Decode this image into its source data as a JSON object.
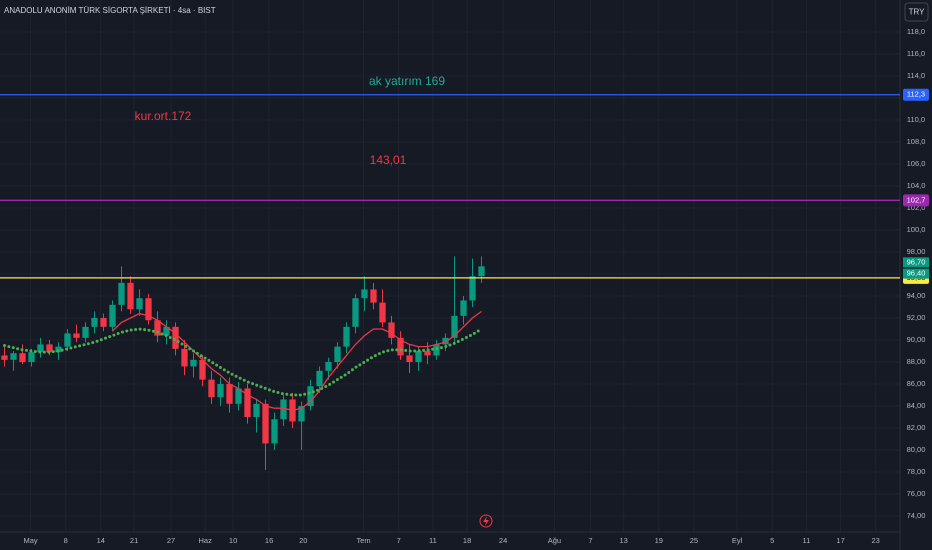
{
  "chart_data": {
    "type": "candlestick",
    "title": "ANADOLU ANONİM TÜRK SİGORTA ŞİRKETİ · 4sa · BIST",
    "currency": "TRY",
    "up_color": "#089981",
    "down_color": "#f23645",
    "xlim": [
      -0.5,
      99.5
    ],
    "xticks": [
      {
        "value": 2.9,
        "label": "May"
      },
      {
        "value": 6.8,
        "label": "8"
      },
      {
        "value": 10.7,
        "label": "14"
      },
      {
        "value": 14.4,
        "label": "21"
      },
      {
        "value": 18.5,
        "label": "27"
      },
      {
        "value": 22.3,
        "label": "Haz"
      },
      {
        "value": 25.4,
        "label": "10"
      },
      {
        "value": 29.4,
        "label": "16"
      },
      {
        "value": 33.2,
        "label": "20"
      },
      {
        "value": 39.9,
        "label": "Tem"
      },
      {
        "value": 43.8,
        "label": "7"
      },
      {
        "value": 47.6,
        "label": "11"
      },
      {
        "value": 51.4,
        "label": "18"
      },
      {
        "value": 55.4,
        "label": "24"
      },
      {
        "value": 61.1,
        "label": "Ağu"
      },
      {
        "value": 65.1,
        "label": "7"
      },
      {
        "value": 68.8,
        "label": "13"
      },
      {
        "value": 72.7,
        "label": "19"
      },
      {
        "value": 76.6,
        "label": "25"
      },
      {
        "value": 81.4,
        "label": "Eyl"
      },
      {
        "value": 85.3,
        "label": "5"
      },
      {
        "value": 89.1,
        "label": "11"
      },
      {
        "value": 92.9,
        "label": "17"
      },
      {
        "value": 96.8,
        "label": "23"
      }
    ],
    "ylim": [
      72.55,
      120.91
    ],
    "yticks": [
      {
        "value": 74,
        "label": "74,00"
      },
      {
        "value": 76,
        "label": "76,00"
      },
      {
        "value": 78,
        "label": "78,00"
      },
      {
        "value": 80,
        "label": "80,00"
      },
      {
        "value": 82,
        "label": "82,00"
      },
      {
        "value": 84,
        "label": "84,00"
      },
      {
        "value": 86,
        "label": "86,00"
      },
      {
        "value": 88,
        "label": "88,00"
      },
      {
        "value": 90,
        "label": "90,00"
      },
      {
        "value": 92,
        "label": "92,00"
      },
      {
        "value": 94,
        "label": "94,00"
      },
      {
        "value": 96,
        "label": "96,00"
      },
      {
        "value": 98,
        "label": "98,00"
      },
      {
        "value": 100,
        "label": "100,0"
      },
      {
        "value": 102,
        "label": "102,0"
      },
      {
        "value": 104,
        "label": "104,0"
      },
      {
        "value": 106,
        "label": "106,0"
      },
      {
        "value": 108,
        "label": "108,0"
      },
      {
        "value": 110,
        "label": "110,0"
      },
      {
        "value": 112,
        "label": "112,0"
      },
      {
        "value": 114,
        "label": "114,0"
      },
      {
        "value": 116,
        "label": "116,0"
      },
      {
        "value": 118,
        "label": "118,0"
      }
    ],
    "grid": true,
    "open": [
      88.6,
      88.2,
      88.8,
      88.0,
      88.9,
      89.6,
      88.9,
      89.4,
      90.6,
      90.2,
      91.2,
      92.0,
      91.2,
      93.2,
      95.2,
      92.8,
      93.8,
      91.8,
      90.4,
      91.2,
      89.2,
      87.6,
      88.2,
      86.4,
      84.8,
      86.0,
      84.2,
      85.6,
      83.0,
      84.2,
      80.6,
      82.8,
      84.6,
      82.6,
      84.0,
      85.8,
      87.2,
      88.0,
      89.4,
      91.2,
      93.8,
      94.6,
      93.4,
      91.6,
      90.2,
      88.6,
      88.0,
      89.0,
      88.6,
      89.6,
      90.2,
      92.2,
      93.6,
      95.8
    ],
    "high": [
      89.4,
      89.0,
      89.6,
      89.2,
      90.2,
      90.0,
      89.8,
      91.0,
      91.4,
      91.6,
      92.6,
      92.4,
      93.6,
      96.7,
      95.8,
      94.6,
      94.2,
      92.6,
      91.8,
      91.6,
      90.0,
      88.8,
      88.6,
      87.2,
      86.6,
      86.6,
      86.2,
      86.0,
      84.6,
      84.6,
      83.4,
      85.0,
      85.2,
      84.4,
      86.4,
      87.6,
      88.4,
      89.8,
      91.6,
      94.2,
      95.8,
      95.2,
      94.6,
      92.2,
      90.8,
      89.6,
      89.4,
      89.8,
      90.0,
      90.6,
      97.6,
      94.0,
      97.4,
      97.6
    ],
    "low": [
      87.6,
      87.2,
      87.8,
      87.6,
      88.4,
      88.6,
      88.2,
      89.0,
      89.8,
      89.8,
      90.6,
      90.8,
      90.8,
      92.6,
      92.4,
      92.2,
      91.4,
      89.8,
      89.6,
      88.6,
      86.8,
      86.6,
      85.8,
      84.2,
      84.0,
      83.4,
      83.6,
      82.4,
      81.6,
      78.2,
      80.0,
      82.2,
      82.0,
      80.0,
      83.6,
      85.2,
      86.4,
      87.4,
      88.8,
      90.6,
      92.6,
      92.8,
      91.2,
      89.6,
      88.2,
      87.0,
      87.2,
      87.8,
      88.2,
      89.0,
      89.8,
      91.4,
      93.0,
      95.2
    ],
    "close": [
      88.2,
      88.8,
      88.0,
      88.9,
      89.6,
      88.9,
      89.4,
      90.6,
      90.2,
      91.2,
      92.0,
      91.2,
      93.2,
      95.2,
      92.8,
      93.8,
      91.8,
      90.4,
      91.2,
      89.2,
      87.6,
      88.2,
      86.4,
      84.8,
      86.0,
      84.2,
      85.6,
      83.0,
      84.2,
      80.6,
      82.8,
      84.6,
      82.6,
      84.0,
      85.8,
      87.2,
      88.0,
      89.4,
      91.2,
      93.8,
      94.6,
      93.4,
      91.6,
      90.2,
      88.6,
      88.0,
      89.0,
      88.6,
      89.6,
      90.2,
      92.2,
      93.6,
      95.8,
      96.7
    ],
    "lines": [
      {
        "color": "#f23645",
        "style": "solid",
        "values": [
          null,
          null,
          null,
          null,
          null,
          null,
          null,
          null,
          null,
          null,
          null,
          null,
          90.8,
          91.6,
          92.0,
          92.4,
          92.2,
          91.8,
          91.2,
          90.6,
          89.8,
          89.0,
          88.2,
          87.4,
          86.8,
          86.0,
          85.6,
          85.0,
          84.6,
          84.0,
          83.8,
          83.8,
          83.6,
          83.8,
          84.4,
          85.4,
          86.6,
          87.6,
          88.6,
          89.6,
          90.4,
          91.0,
          91.0,
          90.6,
          90.0,
          89.6,
          89.4,
          89.4,
          89.6,
          89.8,
          90.4,
          91.2,
          92.0,
          92.6
        ]
      },
      {
        "color": "#4caf50",
        "style": "dotted",
        "values": [
          89.5,
          89.3,
          89.1,
          89.0,
          88.9,
          88.9,
          89.0,
          89.2,
          89.4,
          89.6,
          89.8,
          90.1,
          90.4,
          90.7,
          90.9,
          91.0,
          90.9,
          90.7,
          90.4,
          90.0,
          89.5,
          89.0,
          88.5,
          88.0,
          87.5,
          87.0,
          86.6,
          86.2,
          85.9,
          85.6,
          85.3,
          85.1,
          85.0,
          85.0,
          85.2,
          85.5,
          85.9,
          86.4,
          86.9,
          87.5,
          88.0,
          88.5,
          88.9,
          89.1,
          89.1,
          89.0,
          89.0,
          89.1,
          89.2,
          89.4,
          89.7,
          90.1,
          90.5,
          91.0
        ]
      }
    ],
    "hlines": [
      {
        "value": 112.3,
        "label": "112,3",
        "color": "#2962ff"
      },
      {
        "value": 102.7,
        "label": "102,7",
        "color": "#9c27b0"
      },
      {
        "value": 95.65,
        "label": "95,65",
        "color": "#ffeb3b"
      }
    ],
    "price_tags": [
      {
        "value": 96.7,
        "label": "96,70",
        "color": "#089981"
      },
      {
        "value": 96.4,
        "label": "96,40",
        "color": "#089981"
      }
    ],
    "annotations": [
      {
        "text": "ak yatırım 169",
        "color": "#22ab94"
      },
      {
        "text": "kur.ort.172",
        "color": "#f23645"
      },
      {
        "text": "143,01",
        "color": "#f23645"
      }
    ]
  }
}
